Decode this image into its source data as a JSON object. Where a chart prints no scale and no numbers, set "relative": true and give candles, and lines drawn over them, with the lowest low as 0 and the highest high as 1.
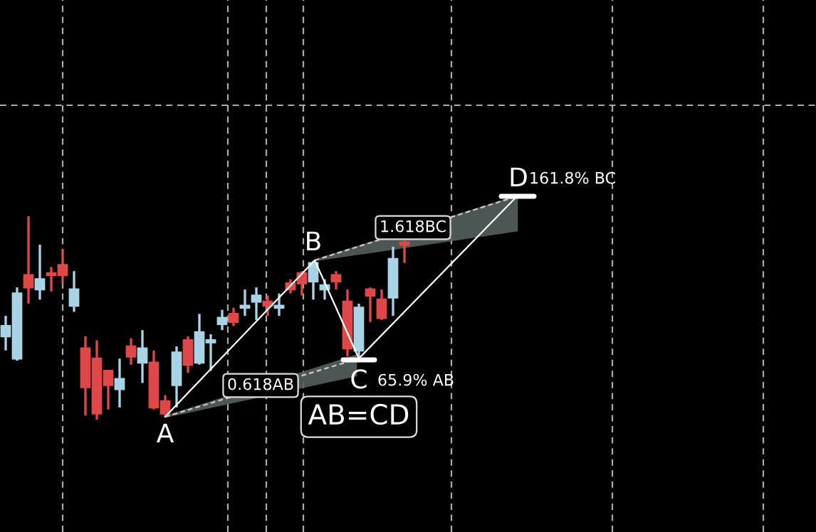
{
  "chart_data": {
    "type": "candlestick",
    "relative": true,
    "grid": true,
    "categories": [
      null,
      null,
      null,
      null,
      null,
      null,
      null,
      null,
      null,
      null,
      null,
      null,
      null,
      null,
      null,
      null,
      null,
      null,
      null,
      null,
      null,
      null,
      null,
      null,
      null,
      null,
      null,
      null,
      null,
      null,
      null,
      null,
      null,
      null,
      null,
      null
    ],
    "ohlc": [
      [
        0.41,
        0.51,
        0.34,
        0.46
      ],
      [
        0.3,
        0.65,
        0.29,
        0.62
      ],
      [
        0.71,
        1.0,
        0.57,
        0.65
      ],
      [
        0.64,
        0.86,
        0.59,
        0.69
      ],
      [
        0.72,
        0.75,
        0.63,
        0.71
      ],
      [
        0.76,
        0.84,
        0.67,
        0.71
      ],
      [
        0.56,
        0.73,
        0.53,
        0.64
      ],
      [
        0.35,
        0.41,
        0.02,
        0.16
      ],
      [
        0.3,
        0.39,
        0.0,
        0.03
      ],
      [
        0.24,
        0.24,
        0.05,
        0.17
      ],
      [
        0.15,
        0.3,
        0.06,
        0.2
      ],
      [
        0.36,
        0.4,
        0.27,
        0.31
      ],
      [
        0.28,
        0.44,
        0.18,
        0.35
      ],
      [
        0.28,
        0.34,
        0.05,
        0.06
      ],
      [
        0.09,
        0.12,
        0.01,
        0.03
      ],
      [
        0.17,
        0.36,
        0.06,
        0.33
      ],
      [
        0.39,
        0.41,
        0.23,
        0.27
      ],
      [
        0.28,
        0.52,
        0.27,
        0.43
      ],
      [
        0.38,
        0.42,
        0.24,
        0.39
      ],
      [
        0.47,
        0.54,
        0.44,
        0.5
      ],
      [
        0.52,
        0.55,
        0.46,
        0.48
      ],
      [
        0.55,
        0.64,
        0.51,
        0.56
      ],
      [
        0.58,
        0.65,
        0.49,
        0.61
      ],
      [
        0.58,
        0.61,
        0.51,
        0.56
      ],
      [
        0.55,
        0.62,
        0.51,
        0.56
      ],
      [
        0.67,
        0.69,
        0.62,
        0.64
      ],
      [
        0.72,
        0.73,
        0.61,
        0.67
      ],
      [
        0.68,
        0.78,
        0.59,
        0.77
      ],
      [
        0.64,
        0.69,
        0.59,
        0.66
      ],
      [
        0.71,
        0.73,
        0.64,
        0.68
      ],
      [
        0.58,
        0.64,
        0.31,
        0.35
      ],
      [
        0.34,
        0.57,
        0.3,
        0.55
      ],
      [
        0.64,
        0.65,
        0.48,
        0.61
      ],
      [
        0.59,
        0.64,
        0.49,
        0.5
      ],
      [
        0.6,
        0.85,
        0.51,
        0.79
      ],
      [
        0.87,
        0.88,
        0.77,
        0.86
      ]
    ],
    "colors": [
      "#a8d4e6",
      "#a8d4e6",
      "#e04848",
      "#a8d4e6",
      "#e04848",
      "#e04848",
      "#a8d4e6",
      "#e04848",
      "#e04848",
      "#e04848",
      "#a8d4e6",
      "#e04848",
      "#a8d4e6",
      "#e04848",
      "#e04848",
      "#a8d4e6",
      "#e04848",
      "#a8d4e6",
      "#a8d4e6",
      "#a8d4e6",
      "#e04848",
      "#a8d4e6",
      "#a8d4e6",
      "#e04848",
      "#a8d4e6",
      "#e04848",
      "#e04848",
      "#a8d4e6",
      "#a8d4e6",
      "#e04848",
      "#e04848",
      "#a8d4e6",
      "#e04848",
      "#e04848",
      "#a8d4e6",
      "#e04848"
    ],
    "annotations": [
      "A",
      "B",
      "C",
      "D",
      "0.618AB",
      "1.618BC",
      "65.9% AB",
      "161.8% BC",
      "AB=CD"
    ]
  }
}
